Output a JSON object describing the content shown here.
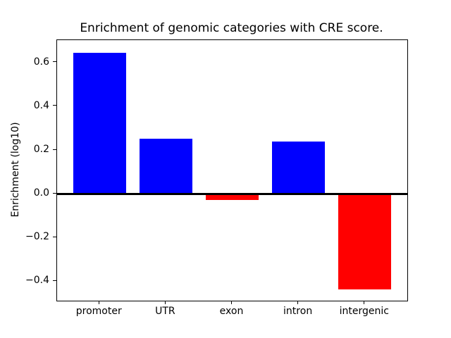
{
  "chart_data": {
    "type": "bar",
    "title": "Enrichment of genomic categories with CRE score.",
    "ylabel": "Enrichment (log10)",
    "xlabel": "",
    "categories": [
      "promoter",
      "UTR",
      "exon",
      "intron",
      "intergenic"
    ],
    "values": [
      0.645,
      0.25,
      -0.03,
      0.24,
      -0.44
    ],
    "bar_colors": [
      "#0000ff",
      "#0000ff",
      "#ff0000",
      "#0000ff",
      "#ff0000"
    ],
    "positive_color": "#0000ff",
    "negative_color": "#ff0000",
    "yticks": [
      0.6,
      0.4,
      0.2,
      0.0,
      -0.2,
      -0.4
    ],
    "ytick_labels": [
      "0.6",
      "0.4",
      "0.2",
      "0.0",
      "−0.2",
      "−0.4"
    ],
    "ylim": [
      -0.49,
      0.703
    ],
    "xlim": [
      -0.64,
      4.64
    ],
    "bar_width": 0.8,
    "zero_line": true,
    "grid": false,
    "legend": null,
    "background_color": "#ffffff",
    "axis_color": "#000000"
  }
}
